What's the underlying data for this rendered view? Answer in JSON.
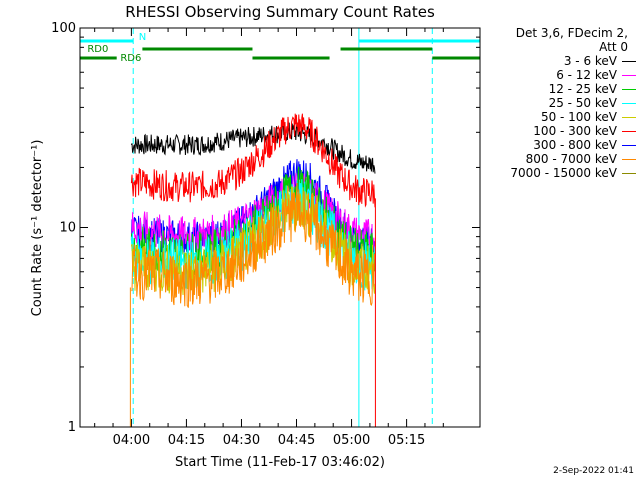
{
  "chart_data": {
    "type": "line",
    "title": "RHESSI Observing Summary Count Rates",
    "xlabel": "Start Time (11-Feb-17 03:46:02)",
    "ylabel": "Count Rate (s⁻¹ detector⁻¹)",
    "ylog": true,
    "ylim": [
      1,
      100
    ],
    "xlim_minutes": [
      226,
      335
    ],
    "x_ticks": [
      "04:00",
      "04:15",
      "04:30",
      "04:45",
      "05:00",
      "05:15"
    ],
    "x_tick_minutes": [
      240,
      255,
      270,
      285,
      300,
      315
    ],
    "y_ticks": [
      "1",
      "10",
      "100"
    ],
    "y_tick_values": [
      1,
      10,
      100
    ],
    "legend_header": [
      "Det 3,6, FDecim 2,",
      "Att 0"
    ],
    "series": [
      {
        "name": "3 - 6 keV",
        "color": "#000000",
        "x": [
          240,
          246,
          252,
          258,
          264,
          270,
          276,
          282,
          285,
          288,
          292,
          296,
          300,
          303,
          306
        ],
        "y": [
          26,
          26,
          26,
          26,
          27,
          28,
          29,
          30,
          30,
          29,
          27,
          24,
          22,
          21,
          21
        ]
      },
      {
        "name": "6 - 12 keV",
        "color": "#ff00ff",
        "x": [
          240,
          246,
          252,
          258,
          264,
          270,
          276,
          282,
          285,
          288,
          292,
          296,
          300,
          303,
          306
        ],
        "y": [
          10,
          9.5,
          9.2,
          9.1,
          9.4,
          10.5,
          12.5,
          15,
          16,
          15,
          13,
          11,
          9.5,
          9,
          9
        ]
      },
      {
        "name": "12 - 25 keV",
        "color": "#00cc00",
        "x": [
          240,
          246,
          252,
          258,
          264,
          270,
          276,
          282,
          285,
          288,
          292,
          296,
          300,
          303,
          306
        ],
        "y": [
          8,
          7.8,
          7.5,
          7.4,
          7.8,
          9,
          11,
          14.5,
          16,
          15,
          12,
          9.5,
          8,
          7.5,
          7.5
        ]
      },
      {
        "name": "25 - 50 keV",
        "color": "#00ffff",
        "x": [
          240,
          246,
          252,
          258,
          264,
          270,
          276,
          282,
          285,
          288,
          292,
          296,
          300,
          303,
          306
        ],
        "y": [
          7,
          6.8,
          6.6,
          6.5,
          6.9,
          8,
          10,
          12.5,
          13.5,
          12.8,
          10.5,
          8.5,
          7,
          6.5,
          6.5
        ]
      },
      {
        "name": "50 - 100 keV",
        "color": "#cccc00",
        "x": [
          240,
          246,
          252,
          258,
          264,
          270,
          276,
          282,
          285,
          288,
          292,
          296,
          300,
          303,
          306
        ],
        "y": [
          6.5,
          6.3,
          6.1,
          6,
          6.4,
          7.4,
          9.5,
          12,
          13,
          12.3,
          10,
          8,
          6.6,
          6.2,
          6.2
        ]
      },
      {
        "name": "100 - 300 keV",
        "color": "#ff0000",
        "x": [
          240,
          246,
          252,
          258,
          264,
          270,
          276,
          282,
          285,
          288,
          292,
          296,
          300,
          303,
          306
        ],
        "y": [
          17,
          16.5,
          16,
          16,
          16.5,
          19,
          24,
          31,
          33,
          31,
          25,
          19,
          16,
          15,
          15
        ]
      },
      {
        "name": "300 - 800 keV",
        "color": "#0000ff",
        "x": [
          240,
          246,
          252,
          258,
          264,
          270,
          276,
          282,
          285,
          288,
          292,
          296,
          300,
          303,
          306
        ],
        "y": [
          9.5,
          9.2,
          9,
          8.8,
          9.2,
          10.5,
          13,
          17,
          19,
          18,
          14.5,
          11,
          9,
          8.5,
          8.5
        ]
      },
      {
        "name": "800 - 7000 keV",
        "color": "#ff8800",
        "x": [
          240,
          246,
          252,
          258,
          264,
          270,
          276,
          282,
          285,
          288,
          292,
          296,
          300,
          303,
          306
        ],
        "y": [
          6,
          5.8,
          5.5,
          5.4,
          5.8,
          6.8,
          8.8,
          11,
          12.2,
          11.5,
          9.2,
          7.2,
          6,
          5.6,
          5.6
        ]
      },
      {
        "name": "7000 - 15000 keV",
        "color": "#8b8b00",
        "x": [],
        "y": []
      }
    ],
    "flags": [
      {
        "label": "N",
        "color": "#00ffff",
        "segments": [
          [
            226,
            240.5
          ],
          [
            302,
            335
          ]
        ]
      },
      {
        "label": "RD0",
        "color": "#008800",
        "segments": [
          [
            243,
            273
          ],
          [
            297,
            322
          ]
        ]
      },
      {
        "label": "RD6",
        "color": "#008800",
        "segments": [
          [
            226,
            236
          ],
          [
            273,
            294
          ],
          [
            322,
            335
          ]
        ]
      }
    ],
    "cyan_solid_minutes": [
      226,
      302
    ],
    "cyan_dashed_minutes": [
      240.5,
      322
    ],
    "red_drop_minutes": 306.5
  },
  "footer_date": "2-Sep-2022 01:41"
}
